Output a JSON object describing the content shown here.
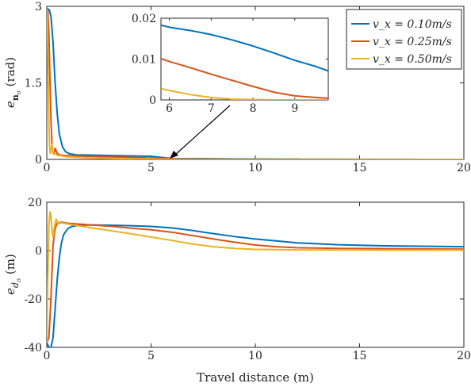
{
  "chart_data": [
    {
      "type": "line",
      "panel": "top",
      "xlabel": "",
      "ylabel": "e_n_o (rad)",
      "ylabel_main": "e",
      "ylabel_sub": "n",
      "ylabel_subsub": "o",
      "ylabel_unit": "(rad)",
      "xlim": [
        0,
        20
      ],
      "ylim": [
        0,
        3
      ],
      "xticks": [
        0,
        5,
        10,
        15,
        20
      ],
      "yticks": [
        0,
        1.5,
        3
      ],
      "xtick_labels": [
        "0",
        "5",
        "10",
        "15",
        "20"
      ],
      "ytick_labels": [
        "0",
        "1.5",
        "3"
      ],
      "grid": false,
      "legend_position": "top-right",
      "series": [
        {
          "name": "v_x = 0.10m/s",
          "color": "#0072BD",
          "x": [
            0,
            0.05,
            0.12,
            0.2,
            0.3,
            0.4,
            0.5,
            0.6,
            0.75,
            0.9,
            1.1,
            1.4,
            2,
            3,
            4,
            5,
            6,
            7,
            8,
            9,
            10,
            12,
            14,
            16,
            18,
            20
          ],
          "y": [
            2.95,
            2.95,
            2.93,
            2.8,
            2.3,
            1.5,
            0.9,
            0.5,
            0.25,
            0.15,
            0.11,
            0.09,
            0.085,
            0.075,
            0.068,
            0.06,
            0.018,
            0.016,
            0.013,
            0.01,
            0.007,
            0.005,
            0.003,
            0.002,
            0.001,
            0.001
          ]
        },
        {
          "name": "v_x = 0.25m/s",
          "color": "#D95319",
          "x": [
            0,
            0.05,
            0.1,
            0.15,
            0.2,
            0.25,
            0.3,
            0.35,
            0.4,
            0.5,
            0.6,
            0.8,
            1.2,
            2,
            4,
            6,
            7,
            8,
            9,
            9.8,
            10,
            12,
            20
          ],
          "y": [
            2.95,
            2.9,
            2.5,
            1.6,
            0.8,
            0.3,
            0.12,
            0.1,
            0.22,
            0.12,
            0.09,
            0.08,
            0.07,
            0.06,
            0.04,
            0.01,
            0.006,
            0.003,
            0.001,
            0.0005,
            0.0004,
            0.0002,
            0
          ]
        },
        {
          "name": "v_x = 0.50m/s",
          "color": "#EDB120",
          "x": [
            0,
            0.03,
            0.06,
            0.1,
            0.13,
            0.16,
            0.2,
            0.25,
            0.3,
            0.35,
            0.4,
            0.5,
            0.7,
            1,
            2,
            4,
            6,
            7,
            8,
            9,
            10,
            20
          ],
          "y": [
            2.95,
            2.7,
            1.8,
            0.8,
            0.3,
            0.12,
            0.18,
            0.3,
            0.15,
            0.1,
            0.12,
            0.08,
            0.07,
            0.05,
            0.03,
            0.01,
            0.003,
            0.0005,
            0.0001,
            0,
            0,
            0
          ]
        }
      ]
    },
    {
      "type": "line",
      "panel": "inset",
      "xlim": [
        5.8,
        9.8
      ],
      "ylim": [
        0,
        0.02
      ],
      "xticks": [
        6,
        7,
        8,
        9
      ],
      "yticks": [
        0,
        0.01,
        0.02
      ],
      "xtick_labels": [
        "6",
        "7",
        "8",
        "9"
      ],
      "ytick_labels": [
        "0",
        "0.01",
        "0.02"
      ],
      "grid": false,
      "series": [
        {
          "name": "v_x = 0.10m/s",
          "color": "#0072BD",
          "x": [
            5.8,
            6,
            6.5,
            7,
            7.5,
            8,
            8.5,
            9,
            9.5,
            9.8
          ],
          "y": [
            0.0183,
            0.0178,
            0.017,
            0.016,
            0.0147,
            0.0132,
            0.0115,
            0.0097,
            0.0082,
            0.0071
          ]
        },
        {
          "name": "v_x = 0.25m/s",
          "color": "#D95319",
          "x": [
            5.8,
            6,
            6.5,
            7,
            7.5,
            8,
            8.5,
            9,
            9.5,
            9.8
          ],
          "y": [
            0.0101,
            0.0094,
            0.0079,
            0.0063,
            0.0048,
            0.0033,
            0.0019,
            0.001,
            0.0006,
            0.0004
          ]
        },
        {
          "name": "v_x = 0.50m/s",
          "color": "#EDB120",
          "x": [
            5.8,
            6,
            6.5,
            7,
            7.5,
            8,
            8.5,
            9,
            9.5,
            9.8
          ],
          "y": [
            0.0028,
            0.0023,
            0.0013,
            0.0006,
            0.0002,
            0.0001,
            0,
            0,
            0,
            0
          ]
        }
      ]
    },
    {
      "type": "line",
      "panel": "bottom",
      "xlabel": "Travel distance (m)",
      "ylabel": "e_d_o (m)",
      "ylabel_main": "e",
      "ylabel_sub": "d",
      "ylabel_subsub": "o",
      "ylabel_unit": "(m)",
      "xlim": [
        0,
        20
      ],
      "ylim": [
        -40,
        20
      ],
      "xticks": [
        0,
        5,
        10,
        15,
        20
      ],
      "yticks": [
        -40,
        -20,
        0,
        20
      ],
      "xtick_labels": [
        "0",
        "5",
        "10",
        "15",
        "20"
      ],
      "ytick_labels": [
        "-40",
        "-20",
        "0",
        "20"
      ],
      "grid": false,
      "series": [
        {
          "name": "v_x = 0.10m/s",
          "color": "#0072BD",
          "x": [
            0,
            0.1,
            0.2,
            0.3,
            0.4,
            0.5,
            0.6,
            0.7,
            0.8,
            1,
            1.2,
            1.5,
            2,
            3,
            4,
            5,
            6,
            7,
            8,
            9,
            10,
            11,
            12,
            14,
            16,
            18,
            20
          ],
          "y": [
            -38,
            -40,
            -40,
            -36,
            -24,
            -12,
            -3,
            3,
            6.5,
            9,
            10,
            10.4,
            10.6,
            10.5,
            10.3,
            10,
            9.4,
            8.3,
            7,
            5.8,
            4.8,
            4,
            3.2,
            2.4,
            2,
            1.8,
            1.6
          ]
        },
        {
          "name": "v_x = 0.25m/s",
          "color": "#D95319",
          "x": [
            0,
            0.1,
            0.2,
            0.3,
            0.35,
            0.4,
            0.5,
            0.6,
            0.7,
            0.8,
            1,
            1.5,
            2,
            3,
            4,
            5,
            6,
            7,
            8,
            9,
            10,
            11,
            12,
            14,
            16,
            20
          ],
          "y": [
            -38,
            -36,
            -20,
            2,
            6,
            9,
            11.5,
            11.2,
            11.8,
            11.6,
            11.3,
            11,
            10.7,
            10.1,
            9.3,
            8.6,
            7.6,
            6.2,
            4.8,
            3.5,
            2.3,
            1.6,
            1.2,
            0.9,
            0.8,
            0.6
          ]
        },
        {
          "name": "v_x = 0.50m/s",
          "color": "#EDB120",
          "x": [
            0,
            0.05,
            0.1,
            0.15,
            0.2,
            0.25,
            0.3,
            0.35,
            0.4,
            0.45,
            0.5,
            0.55,
            0.6,
            0.7,
            0.8,
            1,
            1.5,
            2,
            3,
            4,
            5,
            6,
            7,
            8,
            9,
            10,
            12,
            16,
            20
          ],
          "y": [
            -38,
            -10,
            10,
            16,
            14.5,
            8,
            5.5,
            9,
            11.5,
            13,
            12,
            11,
            11.8,
            11.5,
            11.3,
            11,
            10.3,
            9.6,
            8.3,
            7,
            5.6,
            4.2,
            2.7,
            1.6,
            0.9,
            0.5,
            0.3,
            0.2,
            0.2
          ]
        }
      ]
    }
  ]
}
